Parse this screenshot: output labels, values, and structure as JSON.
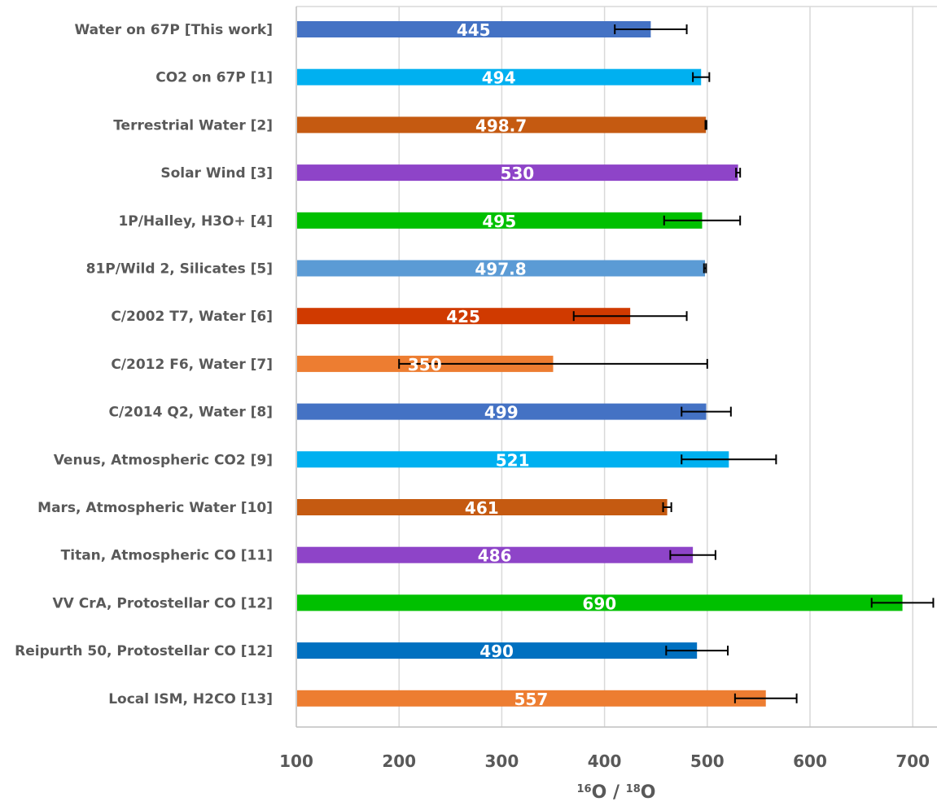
{
  "chart_data": {
    "type": "bar",
    "orientation": "horizontal",
    "xlabel": {
      "iso1_mass": "16",
      "iso1_elem": "O",
      "separator": " / ",
      "iso2_mass": "18",
      "iso2_elem": "O"
    },
    "xlim": [
      100,
      720
    ],
    "xticks": [
      100,
      200,
      300,
      400,
      500,
      600,
      700
    ],
    "grid": true,
    "legend": "none",
    "categories": [
      "Water on 67P [This work]",
      "CO2 on 67P [1]",
      "Terrestrial Water [2]",
      "Solar Wind [3]",
      "1P/Halley, H3O+ [4]",
      "81P/Wild 2, Silicates [5]",
      "C/2002 T7, Water [6]",
      "C/2012 F6, Water [7]",
      "C/2014 Q2, Water [8]",
      "Venus, Atmospheric CO2 [9]",
      "Mars, Atmospheric Water [10]",
      "Titan, Atmospheric CO [11]",
      "VV CrA, Protostellar CO [12]",
      "Reipurth 50, Protostellar CO [12]",
      "Local ISM, H2CO [13]"
    ],
    "values": [
      445,
      494,
      498.7,
      530,
      495,
      497.8,
      425,
      350,
      499,
      521,
      461,
      486,
      690,
      490,
      557
    ],
    "value_labels": [
      "445",
      "494",
      "498.7",
      "530",
      "495",
      "497.8",
      "425",
      "350",
      "499",
      "521",
      "461",
      "486",
      "690",
      "490",
      "557"
    ],
    "error_bars": [
      35,
      8,
      0.5,
      2,
      37,
      1,
      55,
      150,
      24,
      46,
      4,
      22,
      30,
      30,
      30
    ],
    "colors": [
      "#4472C4",
      "#00B0F0",
      "#C55A11",
      "#8E44C8",
      "#00C000",
      "#5B9BD5",
      "#D03A00",
      "#ED7D31",
      "#4472C4",
      "#00B0F0",
      "#C55A11",
      "#8E44C8",
      "#00C000",
      "#0070C0",
      "#ED7D31"
    ]
  }
}
